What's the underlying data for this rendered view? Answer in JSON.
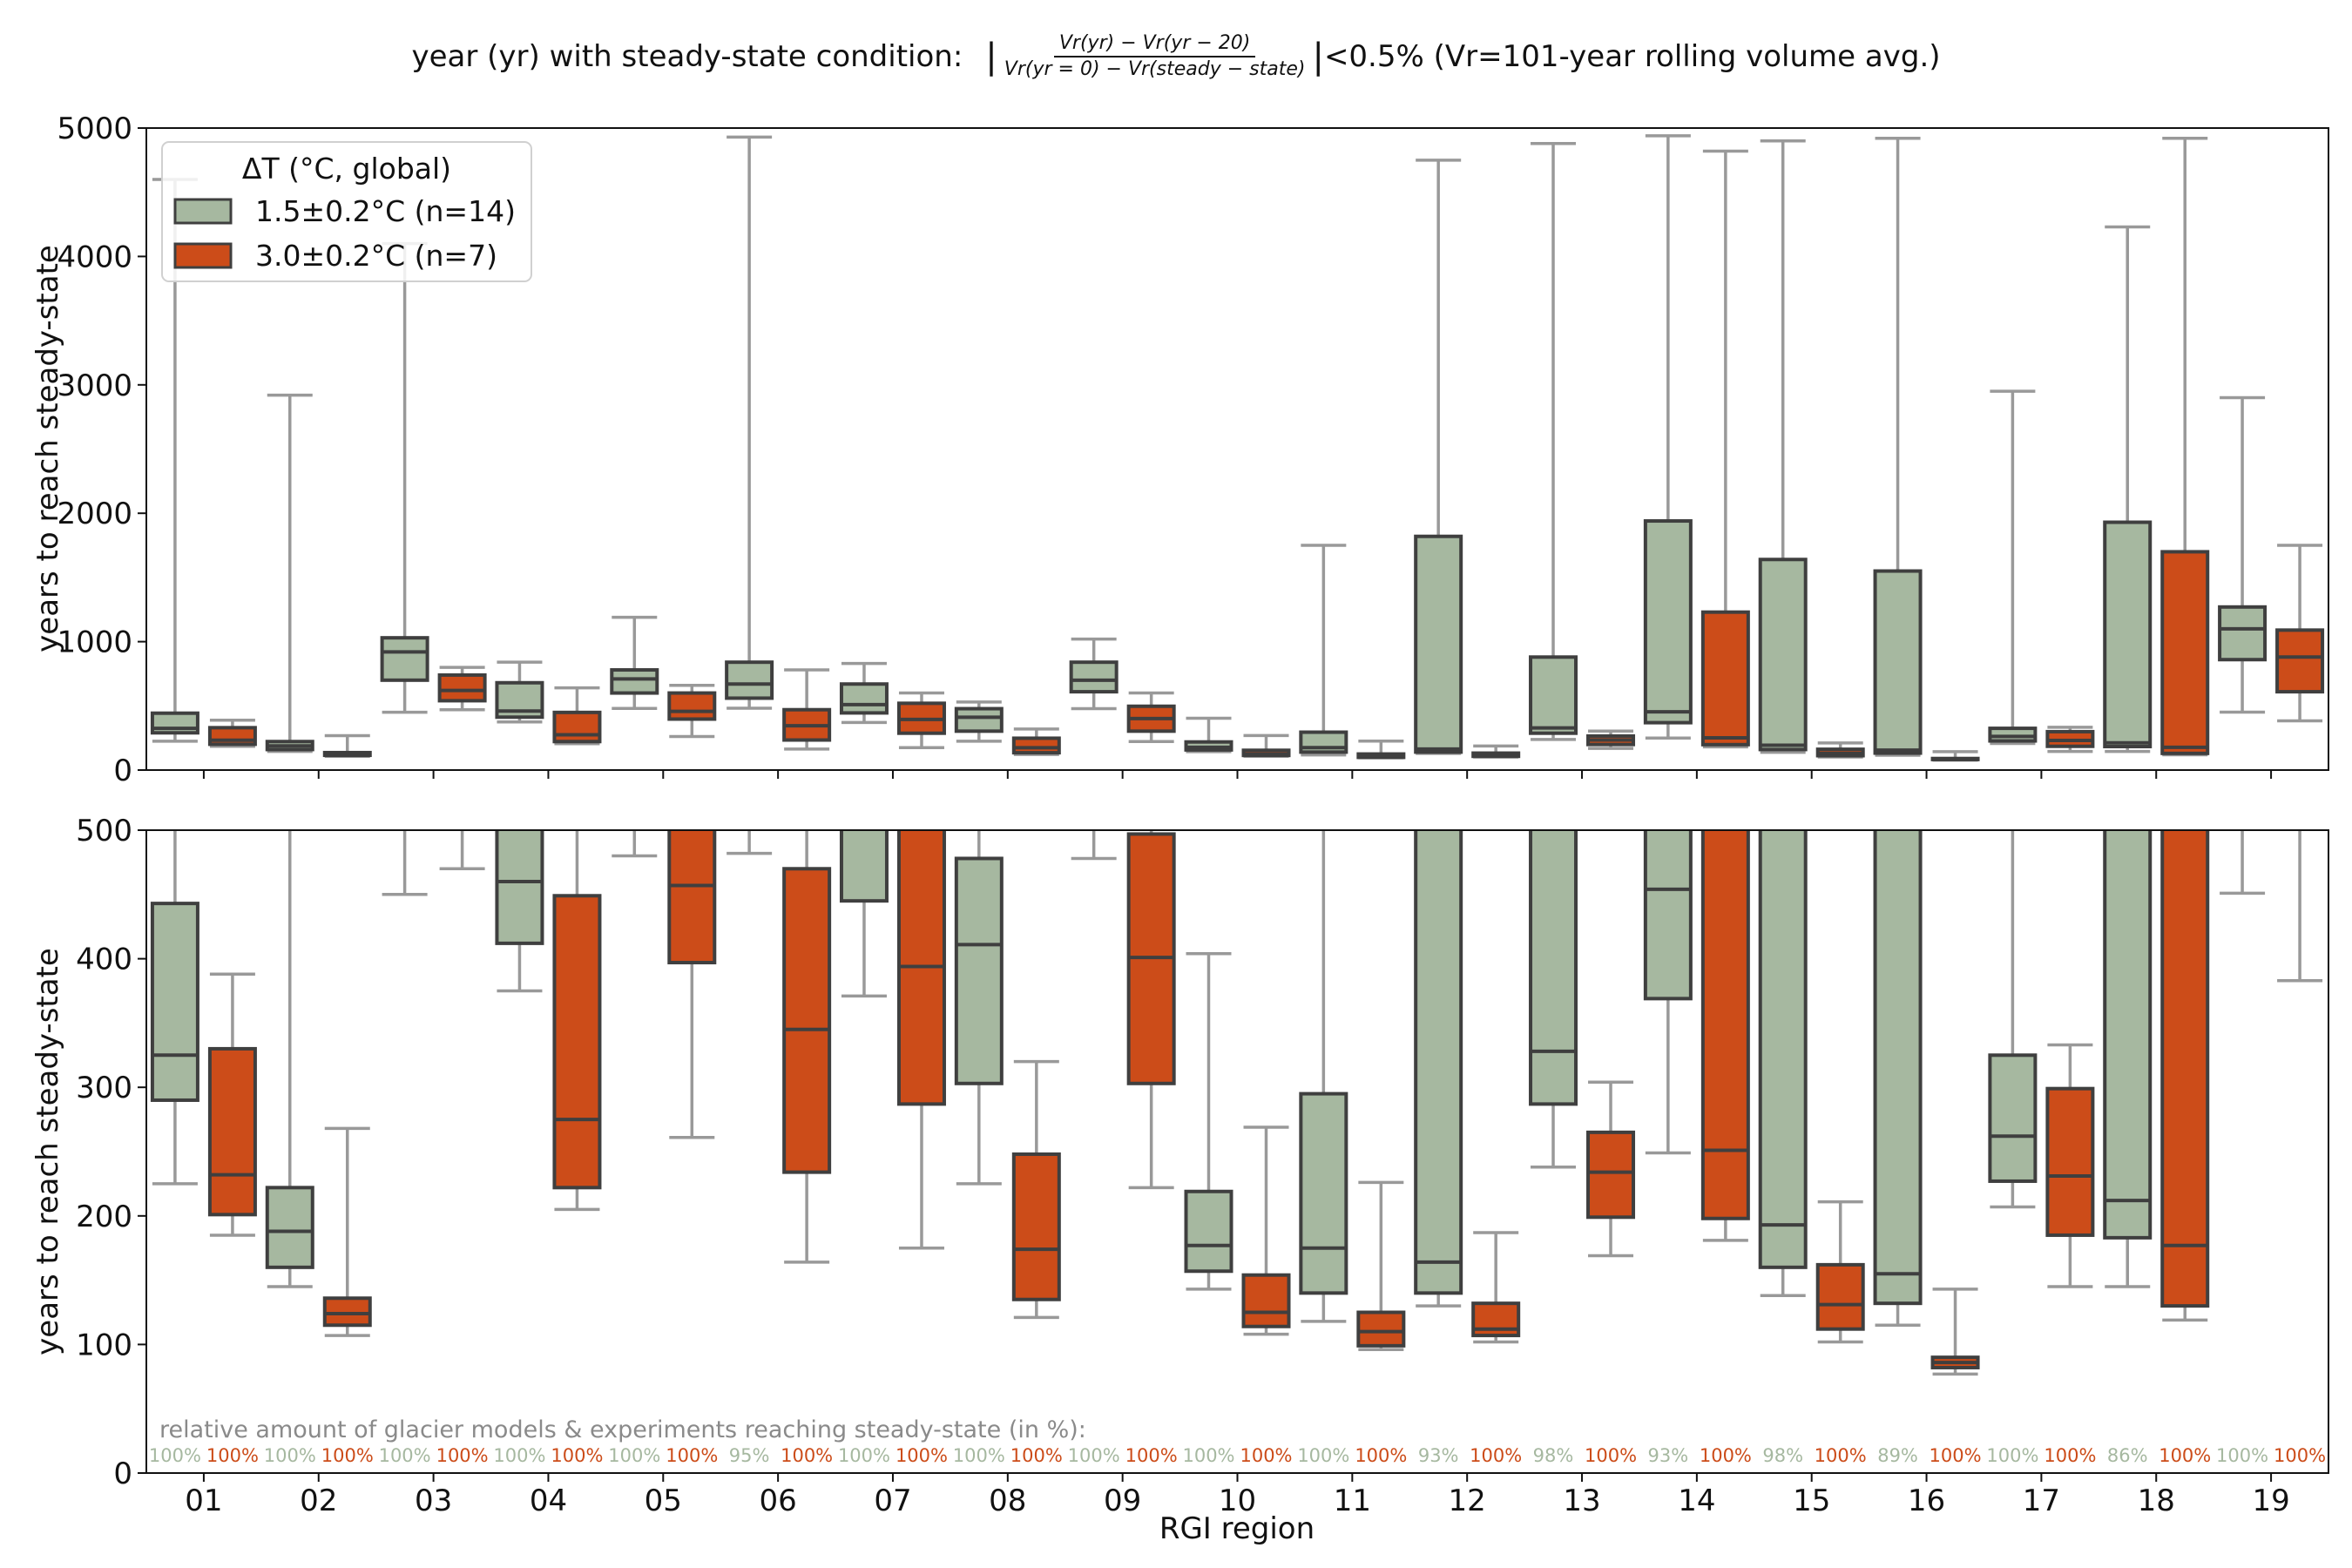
{
  "title": {
    "prefix": "year (yr) with steady-state condition:",
    "numerator": "Vr(yr) − Vr(yr − 20)",
    "denominator": "Vr(yr = 0) − Vr(steady − state)",
    "suffix": "<0.5% (Vr=101-year rolling volume avg.)"
  },
  "legend": {
    "title": "ΔT (°C, global)",
    "position": "top-left",
    "items": [
      {
        "label": "1.5±0.2°C (n=14)",
        "color": "#a6b8a0"
      },
      {
        "label": "3.0±0.2°C (n=7)",
        "color": "#cc4c19"
      }
    ]
  },
  "annotation": "relative amount of glacier models & experiments reaching steady-state (in %):",
  "chart_data": {
    "type": "box",
    "xlabel": "RGI region",
    "ylabel": "years to reach steady-state",
    "categories": [
      "01",
      "02",
      "03",
      "04",
      "05",
      "06",
      "07",
      "08",
      "09",
      "10",
      "11",
      "12",
      "13",
      "14",
      "15",
      "16",
      "17",
      "18",
      "19"
    ],
    "panels": [
      {
        "ylim": [
          0,
          5000
        ],
        "yticks": [
          0,
          1000,
          2000,
          3000,
          4000,
          5000
        ]
      },
      {
        "ylim": [
          0,
          500
        ],
        "yticks": [
          0,
          100,
          200,
          300,
          400,
          500
        ]
      }
    ],
    "grid": false,
    "series": [
      {
        "name": "1.5±0.2°C (n=14)",
        "color": "#a6b8a0",
        "boxes": [
          {
            "whislo": 225,
            "q1": 290,
            "med": 325,
            "q3": 443,
            "whishi": 4600
          },
          {
            "whislo": 145,
            "q1": 160,
            "med": 188,
            "q3": 222,
            "whishi": 2920
          },
          {
            "whislo": 450,
            "q1": 700,
            "med": 920,
            "q3": 1030,
            "whishi": 4100
          },
          {
            "whislo": 375,
            "q1": 412,
            "med": 460,
            "q3": 680,
            "whishi": 840
          },
          {
            "whislo": 480,
            "q1": 600,
            "med": 710,
            "q3": 780,
            "whishi": 1190
          },
          {
            "whislo": 482,
            "q1": 560,
            "med": 670,
            "q3": 840,
            "whishi": 4930
          },
          {
            "whislo": 371,
            "q1": 445,
            "med": 510,
            "q3": 670,
            "whishi": 830
          },
          {
            "whislo": 225,
            "q1": 303,
            "med": 411,
            "q3": 478,
            "whishi": 530
          },
          {
            "whislo": 478,
            "q1": 610,
            "med": 700,
            "q3": 840,
            "whishi": 1020
          },
          {
            "whislo": 143,
            "q1": 157,
            "med": 177,
            "q3": 219,
            "whishi": 404
          },
          {
            "whislo": 118,
            "q1": 140,
            "med": 175,
            "q3": 295,
            "whishi": 1750
          },
          {
            "whislo": 130,
            "q1": 140,
            "med": 164,
            "q3": 1820,
            "whishi": 4750
          },
          {
            "whislo": 238,
            "q1": 287,
            "med": 328,
            "q3": 880,
            "whishi": 4880
          },
          {
            "whislo": 249,
            "q1": 369,
            "med": 454,
            "q3": 1940,
            "whishi": 4940
          },
          {
            "whislo": 138,
            "q1": 160,
            "med": 193,
            "q3": 1640,
            "whishi": 4900
          },
          {
            "whislo": 115,
            "q1": 132,
            "med": 155,
            "q3": 1550,
            "whishi": 4920
          },
          {
            "whislo": 207,
            "q1": 227,
            "med": 262,
            "q3": 325,
            "whishi": 2950
          },
          {
            "whislo": 145,
            "q1": 183,
            "med": 212,
            "q3": 1930,
            "whishi": 4230
          },
          {
            "whislo": 451,
            "q1": 860,
            "med": 1100,
            "q3": 1270,
            "whishi": 2900
          }
        ],
        "pct": [
          "100%",
          "100%",
          "100%",
          "100%",
          "100%",
          "95%",
          "100%",
          "100%",
          "100%",
          "100%",
          "100%",
          "93%",
          "98%",
          "93%",
          "98%",
          "89%",
          "100%",
          "86%",
          "100%"
        ]
      },
      {
        "name": "3.0±0.2°C (n=7)",
        "color": "#cc4c19",
        "boxes": [
          {
            "whislo": 185,
            "q1": 201,
            "med": 232,
            "q3": 330,
            "whishi": 388
          },
          {
            "whislo": 107,
            "q1": 115,
            "med": 124,
            "q3": 136,
            "whishi": 268
          },
          {
            "whislo": 470,
            "q1": 540,
            "med": 620,
            "q3": 740,
            "whishi": 800
          },
          {
            "whislo": 205,
            "q1": 222,
            "med": 275,
            "q3": 449,
            "whishi": 640
          },
          {
            "whislo": 261,
            "q1": 397,
            "med": 457,
            "q3": 600,
            "whishi": 660
          },
          {
            "whislo": 164,
            "q1": 234,
            "med": 345,
            "q3": 470,
            "whishi": 780
          },
          {
            "whislo": 175,
            "q1": 287,
            "med": 394,
            "q3": 520,
            "whishi": 600
          },
          {
            "whislo": 121,
            "q1": 135,
            "med": 174,
            "q3": 248,
            "whishi": 320
          },
          {
            "whislo": 222,
            "q1": 303,
            "med": 401,
            "q3": 497,
            "whishi": 600
          },
          {
            "whislo": 108,
            "q1": 114,
            "med": 125,
            "q3": 154,
            "whishi": 269
          },
          {
            "whislo": 96,
            "q1": 99,
            "med": 110,
            "q3": 125,
            "whishi": 226
          },
          {
            "whislo": 102,
            "q1": 107,
            "med": 112,
            "q3": 132,
            "whishi": 187
          },
          {
            "whislo": 169,
            "q1": 199,
            "med": 234,
            "q3": 265,
            "whishi": 304
          },
          {
            "whislo": 181,
            "q1": 198,
            "med": 251,
            "q3": 1230,
            "whishi": 4820
          },
          {
            "whislo": 102,
            "q1": 112,
            "med": 131,
            "q3": 162,
            "whishi": 211
          },
          {
            "whislo": 77,
            "q1": 82,
            "med": 86,
            "q3": 90,
            "whishi": 143
          },
          {
            "whislo": 145,
            "q1": 185,
            "med": 231,
            "q3": 299,
            "whishi": 333
          },
          {
            "whislo": 119,
            "q1": 130,
            "med": 177,
            "q3": 1700,
            "whishi": 4920
          },
          {
            "whislo": 383,
            "q1": 610,
            "med": 880,
            "q3": 1090,
            "whishi": 1750
          }
        ],
        "pct": [
          "100%",
          "100%",
          "100%",
          "100%",
          "100%",
          "100%",
          "100%",
          "100%",
          "100%",
          "100%",
          "100%",
          "100%",
          "100%",
          "100%",
          "100%",
          "100%",
          "100%",
          "100%",
          "100%"
        ]
      }
    ]
  }
}
